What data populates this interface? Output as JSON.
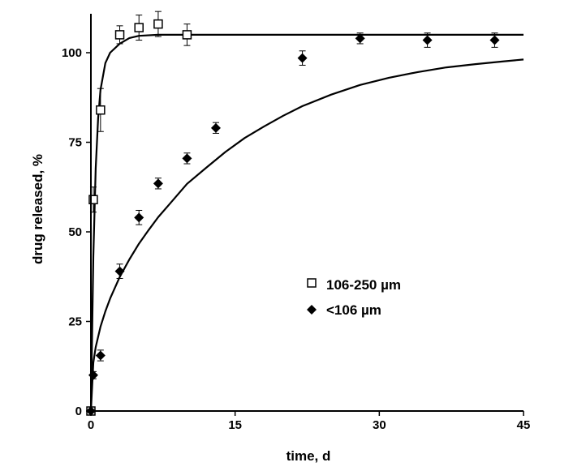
{
  "chart_data": {
    "type": "scatter",
    "xlabel": "time, d",
    "ylabel": "drug released, %",
    "xlim": [
      0,
      45
    ],
    "ylim": [
      0,
      110
    ],
    "xticks": [
      "0",
      "15",
      "30",
      "45"
    ],
    "xtick_values": [
      0,
      15,
      30,
      45
    ],
    "yticks": [
      "0",
      "25",
      "50",
      "75",
      "100"
    ],
    "ytick_values": [
      0,
      25,
      50,
      75,
      100
    ],
    "grid": false,
    "legend_position": "center-right",
    "series": [
      {
        "name": "106-250 µm",
        "marker": "open-square",
        "color": "#000000",
        "x": [
          0,
          0.25,
          1,
          3,
          5,
          7,
          10
        ],
        "y": [
          0,
          59,
          84,
          105,
          107,
          108,
          105
        ],
        "err": [
          0,
          3.5,
          6,
          2.5,
          3.5,
          3.5,
          3
        ],
        "fit": {
          "x": [
            0,
            0.25,
            0.5,
            0.75,
            1,
            1.5,
            2,
            3,
            4,
            5,
            7,
            10,
            15,
            20,
            30,
            45
          ],
          "y": [
            0,
            43.2,
            67.7,
            81.7,
            89.6,
            97.1,
            100.0,
            102.5,
            104.1,
            104.7,
            105.0,
            105.0,
            105.0,
            105.0,
            105.0,
            105.0
          ]
        }
      },
      {
        "name": "<106 µm",
        "marker": "filled-diamond",
        "color": "#000000",
        "x": [
          0,
          0.25,
          1,
          3,
          5,
          7,
          10,
          13,
          22,
          28,
          35,
          42
        ],
        "y": [
          0,
          10,
          15.5,
          39,
          54,
          63.5,
          70.5,
          79,
          98.5,
          104,
          103.5,
          103.5
        ],
        "err": [
          0,
          1,
          1.5,
          2,
          2,
          1.5,
          1.5,
          1.5,
          2,
          1.5,
          2,
          2
        ],
        "fit": {
          "x": [
            0,
            0.25,
            0.5,
            1,
            1.5,
            2,
            3,
            4,
            5,
            6,
            7,
            8,
            10,
            12,
            14,
            16,
            18,
            20,
            22,
            25,
            28,
            31,
            34,
            37,
            40,
            43,
            45
          ],
          "y": [
            0,
            13.5,
            17.8,
            23.5,
            27.8,
            31.4,
            37.4,
            42.3,
            46.7,
            50.5,
            54.1,
            57.2,
            63.4,
            67.9,
            72.3,
            76.2,
            79.4,
            82.4,
            85.1,
            88.3,
            91.0,
            93.0,
            94.6,
            95.9,
            96.8,
            97.6,
            98.1
          ]
        }
      }
    ]
  }
}
